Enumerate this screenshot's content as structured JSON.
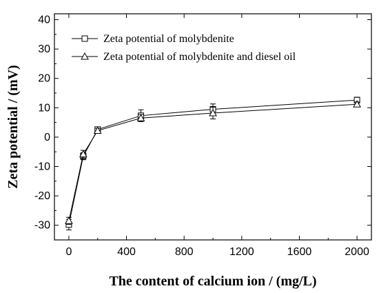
{
  "chart_data": {
    "type": "line",
    "title": "",
    "xlabel": "The content of calcium ion / (mg/L)",
    "ylabel": "Zeta potential / (mV)",
    "xlim": [
      -100,
      2100
    ],
    "ylim": [
      -35,
      42
    ],
    "xticks": [
      0,
      400,
      800,
      1200,
      1600,
      2000
    ],
    "yticks": [
      -30,
      -20,
      -10,
      0,
      10,
      20,
      30,
      40
    ],
    "grid": false,
    "legend_position": "top-left",
    "x": [
      0,
      100,
      200,
      500,
      1000,
      2000
    ],
    "series": [
      {
        "name": "Zeta potential of molybdenite",
        "marker": "square",
        "color": "#000000",
        "values": [
          -29.8,
          -6.5,
          2.6,
          7.3,
          9.5,
          12.6
        ],
        "error": [
          1.8,
          1.2,
          0.8,
          2.0,
          1.8,
          1.0
        ]
      },
      {
        "name": "Zeta potential of molybdenite and diesel oil",
        "marker": "triangle",
        "color": "#000000",
        "values": [
          -28.5,
          -5.8,
          2.2,
          6.5,
          8.2,
          11.2
        ],
        "error": [
          1.2,
          1.3,
          0.8,
          1.2,
          2.0,
          0.8
        ]
      }
    ]
  }
}
